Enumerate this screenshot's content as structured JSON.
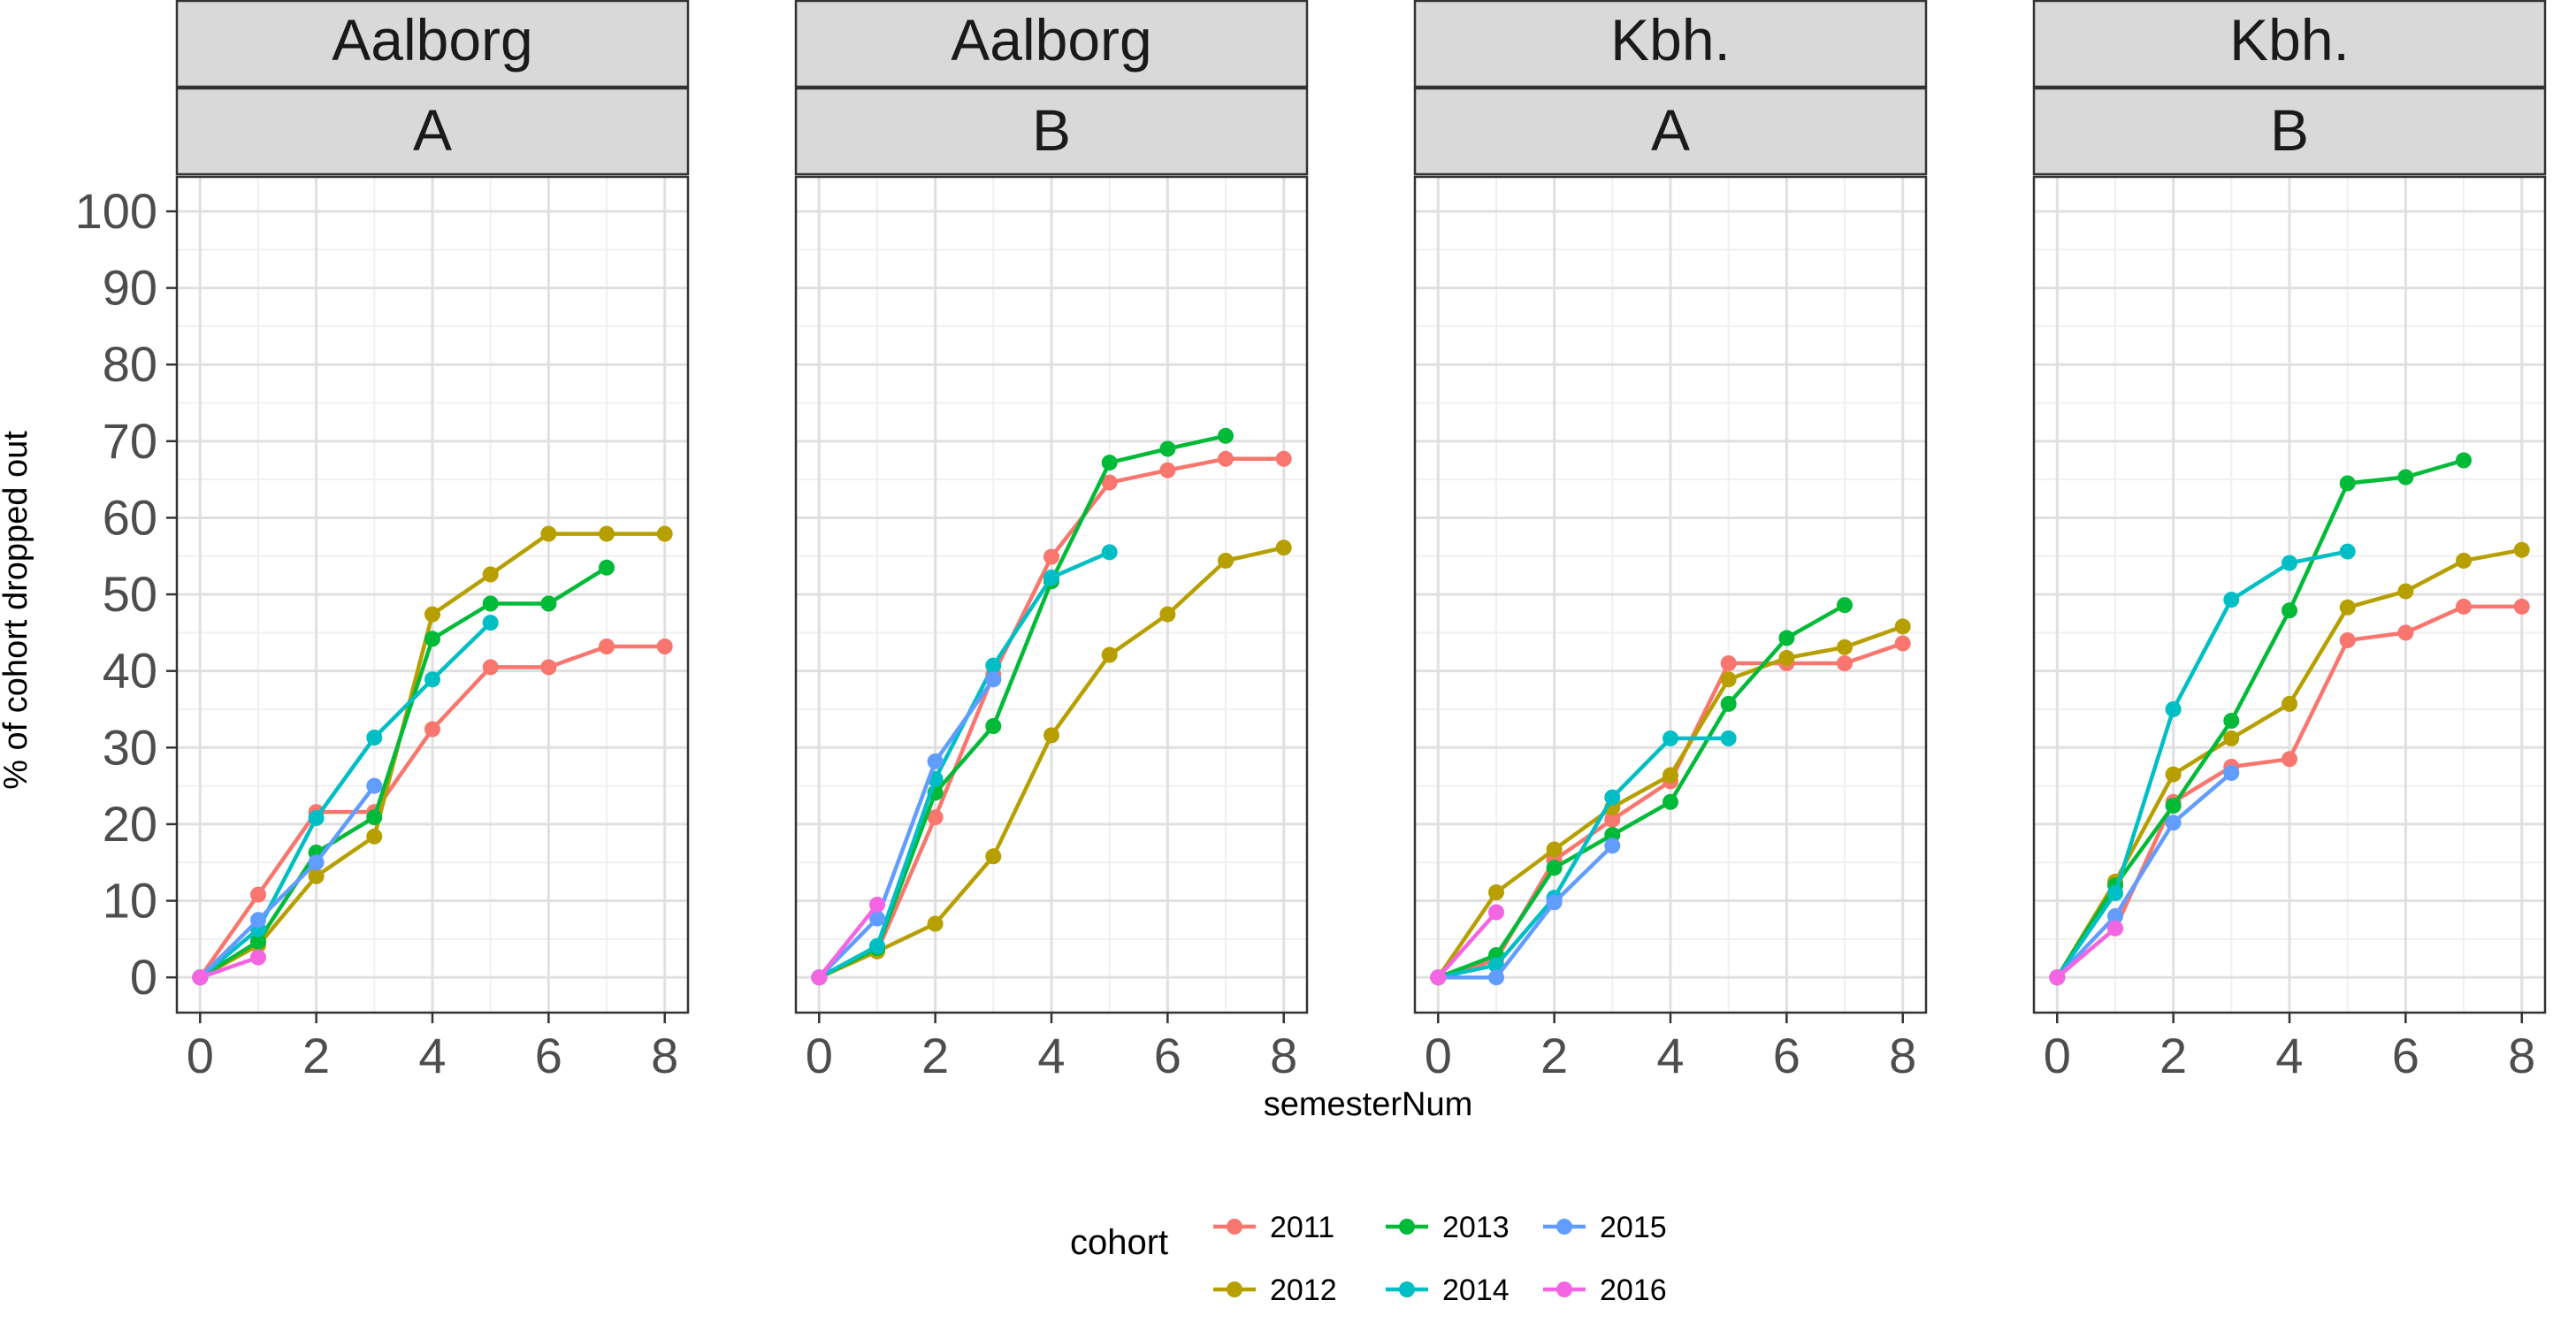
{
  "chart_data": {
    "type": "line",
    "facet_rows": [
      "city",
      "group"
    ],
    "xlabel": "semesterNum",
    "ylabel": "% of cohort dropped out",
    "xlim": [
      0,
      8
    ],
    "ylim": [
      0,
      100
    ],
    "x_ticks": [
      "0",
      "2",
      "4",
      "6",
      "8"
    ],
    "y_ticks": [
      "0",
      "10",
      "20",
      "30",
      "40",
      "50",
      "60",
      "70",
      "80",
      "90",
      "100"
    ],
    "grid": true,
    "legend": {
      "title": "cohort",
      "position": "bottom",
      "entries": [
        {
          "label": "2011",
          "color": "#F8766D"
        },
        {
          "label": "2012",
          "color": "#B79F00"
        },
        {
          "label": "2013",
          "color": "#00BA38"
        },
        {
          "label": "2014",
          "color": "#00BFC4"
        },
        {
          "label": "2015",
          "color": "#619CFF"
        },
        {
          "label": "2016",
          "color": "#F564E3"
        }
      ]
    },
    "panels": [
      {
        "strip_top": "Aalborg",
        "strip_bottom": "A",
        "series": [
          {
            "cohort": "2011",
            "x": [
              0,
              1,
              2,
              3,
              4,
              5,
              6,
              7,
              8
            ],
            "y": [
              0,
              10.8,
              21.6,
              21.6,
              32.4,
              40.5,
              40.5,
              43.2,
              43.2
            ]
          },
          {
            "cohort": "2012",
            "x": [
              0,
              1,
              2,
              3,
              4,
              5,
              6,
              7,
              8
            ],
            "y": [
              0,
              4.2,
              13.2,
              18.4,
              47.4,
              52.6,
              57.9,
              57.9,
              57.9
            ]
          },
          {
            "cohort": "2013",
            "x": [
              0,
              1,
              2,
              3,
              4,
              5,
              6,
              7
            ],
            "y": [
              0,
              4.7,
              16.3,
              20.9,
              44.2,
              48.8,
              48.8,
              53.5
            ]
          },
          {
            "cohort": "2014",
            "x": [
              0,
              1,
              2,
              3,
              4,
              5
            ],
            "y": [
              0,
              6.3,
              20.8,
              31.3,
              38.9,
              46.3
            ]
          },
          {
            "cohort": "2015",
            "x": [
              0,
              1,
              2,
              3
            ],
            "y": [
              0,
              7.5,
              15.0,
              25.0
            ]
          },
          {
            "cohort": "2016",
            "x": [
              0,
              1
            ],
            "y": [
              0,
              2.6
            ]
          }
        ]
      },
      {
        "strip_top": "Aalborg",
        "strip_bottom": "B",
        "series": [
          {
            "cohort": "2011",
            "x": [
              0,
              1,
              2,
              3,
              4,
              5,
              6,
              7,
              8
            ],
            "y": [
              0,
              3.4,
              20.9,
              39.5,
              54.9,
              64.6,
              66.2,
              67.7,
              67.7
            ]
          },
          {
            "cohort": "2012",
            "x": [
              0,
              1,
              2,
              3,
              4,
              5,
              6,
              7,
              8
            ],
            "y": [
              0,
              3.4,
              7.0,
              15.8,
              31.6,
              42.1,
              47.4,
              54.4,
              56.1
            ]
          },
          {
            "cohort": "2013",
            "x": [
              0,
              1,
              2,
              3,
              4,
              5,
              6,
              7
            ],
            "y": [
              0,
              3.8,
              24.1,
              32.8,
              51.7,
              67.2,
              69.0,
              70.7
            ]
          },
          {
            "cohort": "2014",
            "x": [
              0,
              1,
              2,
              3,
              4,
              5
            ],
            "y": [
              0,
              4.1,
              25.9,
              40.7,
              52.2,
              55.5
            ]
          },
          {
            "cohort": "2015",
            "x": [
              0,
              1,
              2,
              3
            ],
            "y": [
              0,
              7.7,
              28.2,
              38.9
            ]
          },
          {
            "cohort": "2016",
            "x": [
              0,
              1
            ],
            "y": [
              0,
              9.5
            ]
          }
        ]
      },
      {
        "strip_top": "Kbh.",
        "strip_bottom": "A",
        "series": [
          {
            "cohort": "2011",
            "x": [
              0,
              1,
              2,
              3,
              4,
              5,
              6,
              7,
              8
            ],
            "y": [
              0,
              2.3,
              15.3,
              20.6,
              25.6,
              41.0,
              41.0,
              41.0,
              43.6
            ]
          },
          {
            "cohort": "2012",
            "x": [
              0,
              1,
              2,
              3,
              4,
              5,
              6,
              7,
              8
            ],
            "y": [
              0,
              11.1,
              16.7,
              22.2,
              26.4,
              38.9,
              41.7,
              43.1,
              45.8
            ]
          },
          {
            "cohort": "2013",
            "x": [
              0,
              1,
              2,
              3,
              4,
              5,
              6,
              7
            ],
            "y": [
              0,
              2.9,
              14.3,
              18.6,
              22.9,
              35.7,
              44.3,
              48.6
            ]
          },
          {
            "cohort": "2014",
            "x": [
              0,
              1,
              2,
              3,
              4,
              5
            ],
            "y": [
              0,
              1.6,
              10.4,
              23.5,
              31.2,
              31.2
            ]
          },
          {
            "cohort": "2015",
            "x": [
              0,
              1,
              2,
              3
            ],
            "y": [
              0,
              0,
              9.8,
              17.2
            ]
          },
          {
            "cohort": "2016",
            "x": [
              0,
              1
            ],
            "y": [
              0,
              8.5
            ]
          }
        ]
      },
      {
        "strip_top": "Kbh.",
        "strip_bottom": "B",
        "series": [
          {
            "cohort": "2011",
            "x": [
              0,
              1,
              2,
              3,
              4,
              5,
              6,
              7,
              8
            ],
            "y": [
              0,
              6.4,
              22.9,
              27.5,
              28.5,
              44.0,
              45.0,
              48.4,
              48.4
            ]
          },
          {
            "cohort": "2012",
            "x": [
              0,
              1,
              2,
              3,
              4,
              5,
              6,
              7,
              8
            ],
            "y": [
              0,
              12.5,
              26.5,
              31.2,
              35.7,
              48.3,
              50.4,
              54.4,
              55.8
            ]
          },
          {
            "cohort": "2013",
            "x": [
              0,
              1,
              2,
              3,
              4,
              5,
              6,
              7
            ],
            "y": [
              0,
              12.0,
              22.4,
              33.5,
              47.9,
              64.5,
              65.3,
              67.5
            ]
          },
          {
            "cohort": "2014",
            "x": [
              0,
              1,
              2,
              3,
              4,
              5
            ],
            "y": [
              0,
              11.0,
              35.0,
              49.3,
              54.1,
              55.6
            ]
          },
          {
            "cohort": "2015",
            "x": [
              0,
              1,
              2,
              3
            ],
            "y": [
              0,
              8.0,
              20.2,
              26.7
            ]
          },
          {
            "cohort": "2016",
            "x": [
              0,
              1
            ],
            "y": [
              0,
              6.4
            ]
          }
        ]
      }
    ]
  }
}
